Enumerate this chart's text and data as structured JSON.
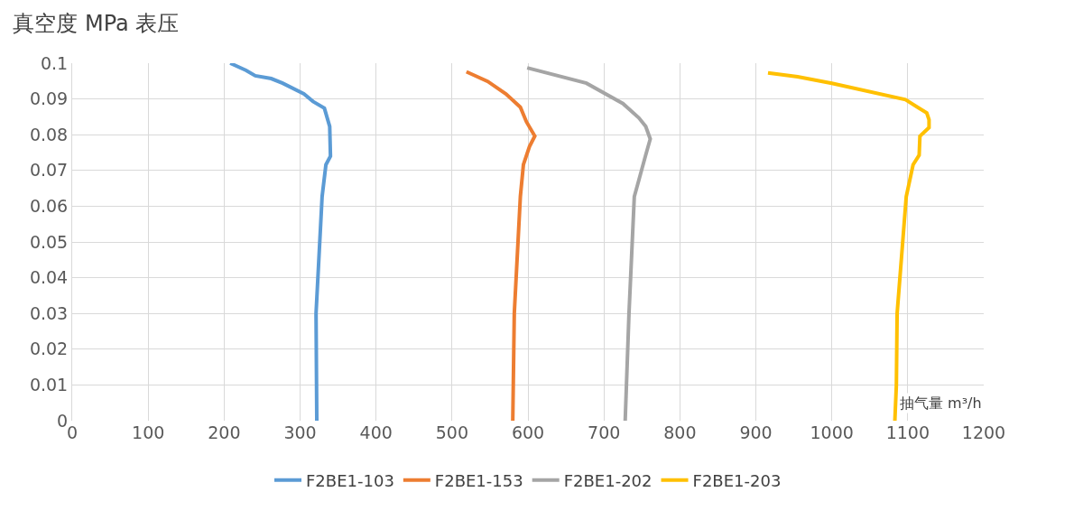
{
  "chart_data": {
    "type": "line",
    "title": "真空度 MPa 表压",
    "xlabel": "抽气量 m³/h",
    "xlim": [
      0,
      1200
    ],
    "xticks": [
      0,
      100,
      200,
      300,
      400,
      500,
      600,
      700,
      800,
      900,
      1000,
      1100,
      1200
    ],
    "ylim": [
      0,
      0.1
    ],
    "yticks": [
      0,
      0.01,
      0.02,
      0.03,
      0.04,
      0.05,
      0.06,
      0.07,
      0.08,
      0.09,
      0.1
    ],
    "grid": true,
    "legend": "bottom",
    "marker": "none",
    "line_style": "solid",
    "series": [
      {
        "name": "F2BE1-103",
        "color": "#5b9bd5",
        "x": [
          208,
          229,
          241,
          262,
          277,
          305,
          317,
          332,
          339,
          340,
          334,
          329,
          321,
          322
        ],
        "values": [
          0.1,
          0.098,
          0.0965,
          0.0957,
          0.0944,
          0.0914,
          0.0893,
          0.0874,
          0.0823,
          0.074,
          0.0716,
          0.0627,
          0.03,
          0
        ]
      },
      {
        "name": "F2BE1-153",
        "color": "#ed7d31",
        "x": [
          519,
          547,
          571,
          590,
          598,
          609,
          602,
          594,
          590,
          582,
          580
        ],
        "values": [
          0.0976,
          0.0949,
          0.0914,
          0.0877,
          0.0836,
          0.0796,
          0.0767,
          0.0716,
          0.0627,
          0.03,
          0
        ]
      },
      {
        "name": "F2BE1-202",
        "color": "#a5a5a5",
        "x": [
          599,
          677,
          725,
          746,
          755,
          761,
          755,
          746,
          740,
          733,
          728
        ],
        "values": [
          0.0987,
          0.0944,
          0.0887,
          0.0847,
          0.0823,
          0.0788,
          0.0743,
          0.0673,
          0.0627,
          0.03,
          0
        ]
      },
      {
        "name": "F2BE1-203",
        "color": "#ffc000",
        "x": [
          916,
          955,
          1000,
          1097,
          1125,
          1128,
          1128,
          1116,
          1115,
          1107,
          1098,
          1086,
          1085,
          1083
        ],
        "values": [
          0.0973,
          0.0962,
          0.0944,
          0.0898,
          0.0861,
          0.0842,
          0.082,
          0.0796,
          0.0743,
          0.0716,
          0.0627,
          0.03,
          0.01,
          0
        ]
      }
    ]
  }
}
